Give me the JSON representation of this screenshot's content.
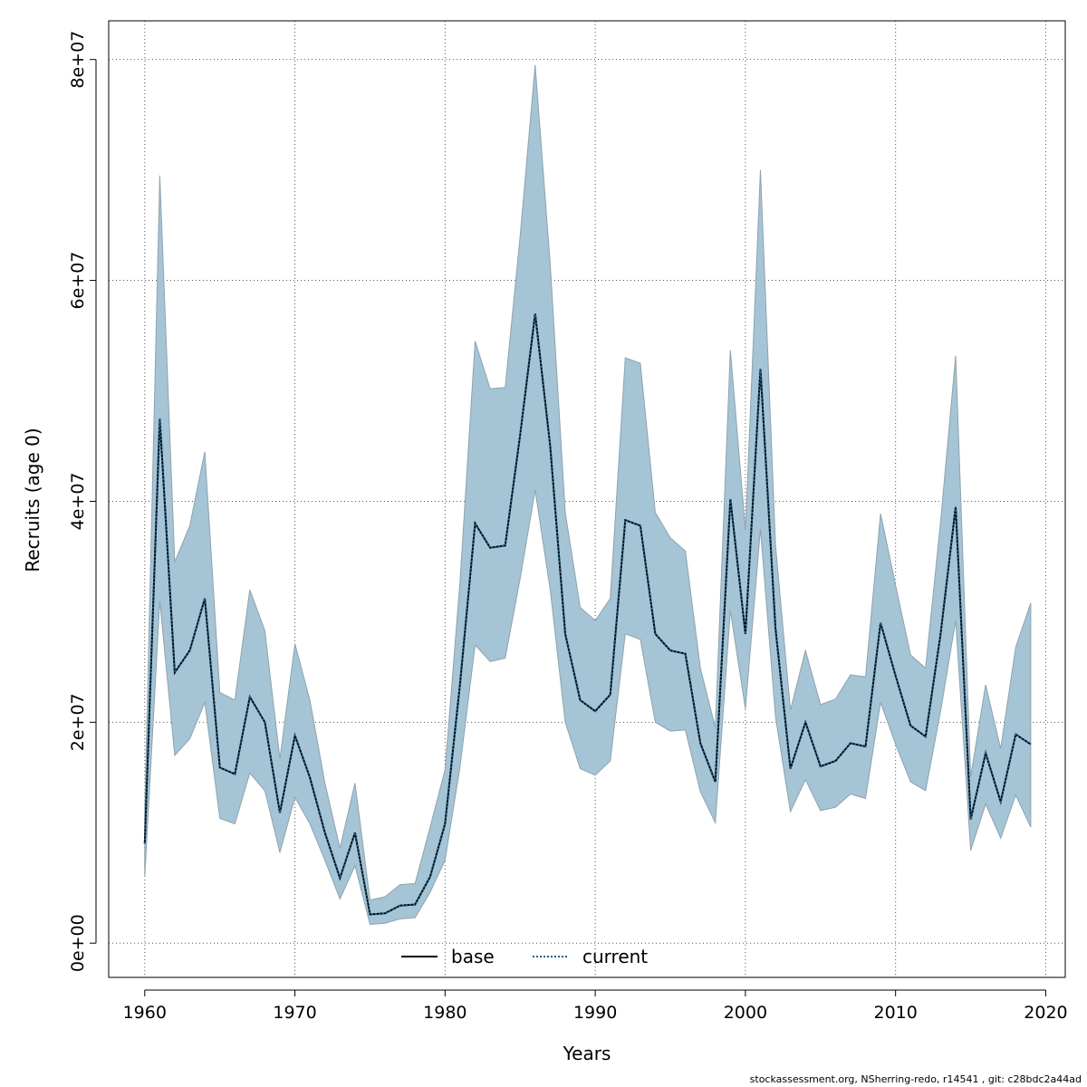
{
  "chart_data": {
    "type": "line",
    "xlabel": "Years",
    "ylabel": "Recruits (age 0)",
    "xlim": [
      1957.6,
      2021.3
    ],
    "ylim": [
      -3100000,
      83500000
    ],
    "x_ticks": [
      1960,
      1970,
      1980,
      1990,
      2000,
      2010,
      2020
    ],
    "y_ticks": [
      0,
      20000000,
      40000000,
      60000000,
      80000000
    ],
    "y_tick_labels": [
      "0e+00",
      "2e+07",
      "4e+07",
      "6e+07",
      "8e+07"
    ],
    "grid": true,
    "legend_position": "bottom-center",
    "x": [
      1960,
      1961,
      1962,
      1963,
      1964,
      1965,
      1966,
      1967,
      1968,
      1969,
      1970,
      1971,
      1972,
      1973,
      1974,
      1975,
      1976,
      1977,
      1978,
      1979,
      1980,
      1981,
      1982,
      1983,
      1984,
      1985,
      1986,
      1987,
      1988,
      1989,
      1990,
      1991,
      1992,
      1993,
      1994,
      1995,
      1996,
      1997,
      1998,
      1999,
      2000,
      2001,
      2002,
      2003,
      2004,
      2005,
      2006,
      2007,
      2008,
      2009,
      2010,
      2011,
      2012,
      2013,
      2014,
      2015,
      2016,
      2017,
      2018,
      2019
    ],
    "series": [
      {
        "name": "base",
        "line": "solid",
        "color": "#000000",
        "values": [
          9000000,
          47500000,
          24500000,
          26500000,
          31200000,
          15900000,
          15300000,
          22300000,
          20000000,
          11800000,
          18800000,
          15000000,
          10000000,
          5900000,
          10000000,
          2600000,
          2700000,
          3400000,
          3500000,
          6000000,
          10800000,
          23500000,
          38000000,
          35800000,
          36000000,
          46000000,
          57000000,
          45000000,
          28000000,
          22000000,
          21000000,
          22500000,
          38300000,
          37800000,
          28000000,
          26500000,
          26200000,
          18100000,
          14600000,
          40200000,
          28000000,
          52000000,
          28500000,
          15800000,
          20000000,
          16000000,
          16500000,
          18100000,
          17800000,
          29000000,
          24200000,
          19700000,
          18700000,
          28000000,
          39500000,
          11200000,
          17200000,
          12800000,
          18900000,
          18000000
        ]
      },
      {
        "name": "current",
        "line": "dotted",
        "color": "#1f5f8b",
        "values": [
          9000000,
          47500000,
          24500000,
          26500000,
          31200000,
          15900000,
          15300000,
          22300000,
          20000000,
          11800000,
          18800000,
          15000000,
          10000000,
          5900000,
          10000000,
          2600000,
          2700000,
          3400000,
          3500000,
          6000000,
          10800000,
          23500000,
          38000000,
          35800000,
          36000000,
          46000000,
          57000000,
          45000000,
          28000000,
          22000000,
          21000000,
          22500000,
          38300000,
          37800000,
          28000000,
          26500000,
          26200000,
          18100000,
          14600000,
          40200000,
          28000000,
          52000000,
          28500000,
          15800000,
          20000000,
          16000000,
          16500000,
          18100000,
          17800000,
          29000000,
          24200000,
          19700000,
          18700000,
          28000000,
          39500000,
          11200000,
          17200000,
          12800000,
          18900000,
          18000000
        ]
      }
    ],
    "band": {
      "color": "#a5c4d6",
      "edge_color": "#8fa3ad",
      "lower": [
        6000000,
        31000000,
        17000000,
        18500000,
        21800000,
        11300000,
        10800000,
        15400000,
        13800000,
        8200000,
        13200000,
        10800000,
        7500000,
        4000000,
        7000000,
        1700000,
        1800000,
        2200000,
        2300000,
        4600000,
        7500000,
        16000000,
        27000000,
        25500000,
        25800000,
        33000000,
        41000000,
        32000000,
        20000000,
        15800000,
        15200000,
        16500000,
        28000000,
        27500000,
        20000000,
        19200000,
        19300000,
        13700000,
        10900000,
        30100000,
        21200000,
        37500000,
        20500000,
        11900000,
        14800000,
        12000000,
        12300000,
        13500000,
        13100000,
        21800000,
        18000000,
        14600000,
        13800000,
        21000000,
        29200000,
        8400000,
        12600000,
        9500000,
        13400000,
        10500000
      ],
      "upper": [
        12000000,
        69500000,
        34500000,
        37800000,
        44500000,
        22700000,
        22000000,
        32000000,
        28300000,
        16700000,
        27100000,
        22000000,
        14500000,
        8600000,
        14500000,
        3900000,
        4200000,
        5300000,
        5400000,
        10500000,
        15700000,
        32800000,
        54500000,
        50200000,
        50300000,
        64000000,
        79500000,
        61500000,
        39000000,
        30400000,
        29200000,
        31200000,
        53000000,
        52500000,
        39000000,
        36700000,
        35500000,
        24900000,
        19500000,
        53700000,
        37400000,
        70000000,
        36100000,
        21100000,
        26500000,
        21600000,
        22100000,
        24300000,
        24100000,
        38900000,
        32400000,
        26100000,
        24900000,
        38200000,
        53200000,
        15100000,
        23400000,
        17600000,
        26800000,
        30800000
      ]
    }
  },
  "footer": {
    "credit": "stockassessment.org, NSherring-redo, r14541 , git: c28bdc2a44ad"
  }
}
